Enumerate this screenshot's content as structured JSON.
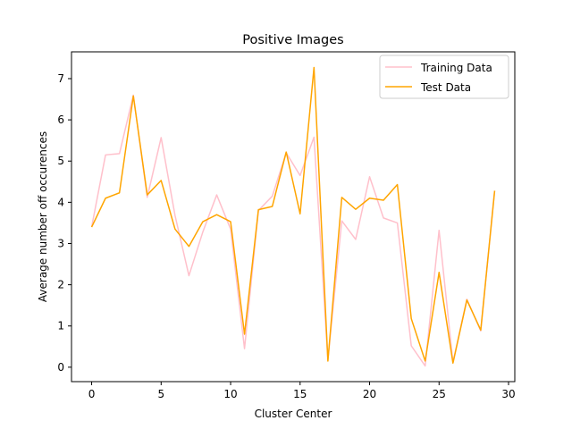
{
  "chart_data": {
    "type": "line",
    "title": "Positive Images",
    "xlabel": "Cluster Center",
    "ylabel": "Average number off occurences",
    "xlim": [
      -1.45,
      30.45
    ],
    "ylim": [
      -0.35,
      7.65
    ],
    "xticks": [
      0,
      5,
      10,
      15,
      20,
      25,
      30
    ],
    "yticks": [
      0,
      1,
      2,
      3,
      4,
      5,
      6,
      7
    ],
    "grid": false,
    "legend_position": "top-right",
    "x": [
      0,
      1,
      2,
      3,
      4,
      5,
      6,
      7,
      8,
      9,
      10,
      11,
      12,
      13,
      14,
      15,
      16,
      17,
      18,
      19,
      20,
      21,
      22,
      23,
      24,
      25,
      26,
      27,
      28,
      29
    ],
    "series": [
      {
        "name": "Training Data",
        "color": "#ffc0cb",
        "values": [
          3.4,
          5.15,
          5.18,
          6.6,
          4.12,
          5.57,
          3.68,
          2.22,
          3.28,
          4.18,
          3.35,
          0.45,
          3.8,
          4.15,
          5.2,
          4.65,
          5.58,
          0.18,
          3.55,
          3.1,
          4.62,
          3.62,
          3.5,
          0.52,
          0.03,
          3.32,
          0.12,
          1.65,
          0.88,
          4.28
        ]
      },
      {
        "name": "Test Data",
        "color": "#ffa500",
        "values": [
          3.4,
          4.1,
          4.23,
          6.58,
          4.18,
          4.53,
          3.35,
          2.93,
          3.53,
          3.7,
          3.53,
          0.8,
          3.82,
          3.9,
          5.22,
          3.72,
          7.27,
          0.15,
          4.12,
          3.83,
          4.1,
          4.05,
          4.43,
          1.18,
          0.15,
          2.3,
          0.1,
          1.63,
          0.9,
          4.28
        ]
      }
    ]
  }
}
